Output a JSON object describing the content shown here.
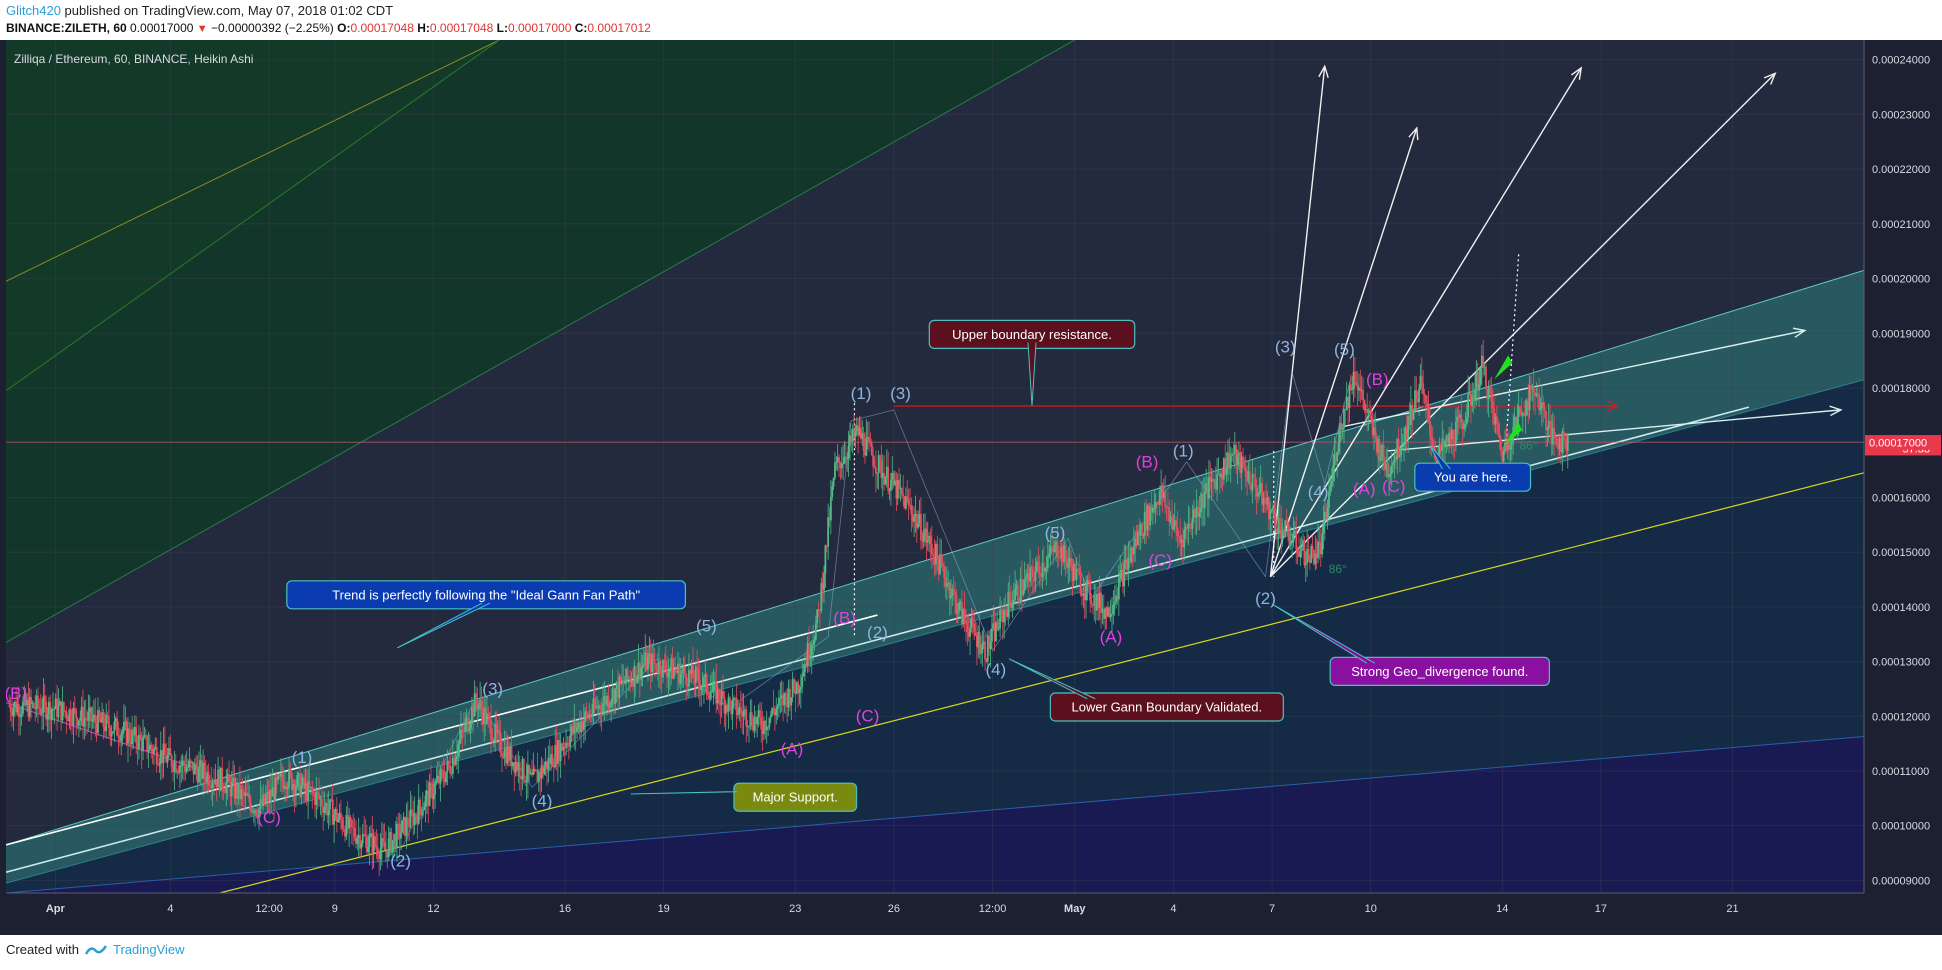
{
  "header": {
    "user": "Glitch420",
    "published": "published on TradingView.com, May 07, 2018 01:02 CDT",
    "symbol": "BINANCE:ZILETH, 60",
    "last": "0.00017000",
    "change_arrow": "▼",
    "change": "−0.00000392 (−2.25%)",
    "o_label": "O:",
    "o_value": "0.00017048",
    "h_label": "H:",
    "h_value": "0.00017048",
    "l_label": "L:",
    "l_value": "0.00017000",
    "c_label": "C:",
    "c_value": "0.00017012"
  },
  "footer": {
    "created_with": "Created with",
    "brand": "TradingView"
  },
  "chart_data": {
    "type": "candlestick",
    "title": "Zilliqa / Ethereum, 60, BINANCE, Heikin Ashi",
    "y_ticks": [
      "0.00024000",
      "0.00023000",
      "0.00022000",
      "0.00021000",
      "0.00020000",
      "0.00019000",
      "0.00018000",
      "0.00017000",
      "0.00016000",
      "0.00015000",
      "0.00014000",
      "0.00013000",
      "0.00012000",
      "0.00011000",
      "0.00010000",
      "0.00009000"
    ],
    "y_tick_values": [
      0.00024,
      0.00023,
      0.00022,
      0.00021,
      0.0002,
      0.00019,
      0.00018,
      0.00017,
      0.00016,
      0.00015,
      0.00014,
      0.00013,
      0.00012,
      0.00011,
      0.0001,
      9e-05
    ],
    "ylim": [
      8.77e-05,
      0.0002436
    ],
    "x_ticks": [
      "Apr",
      "4",
      "12:00",
      "9",
      "12",
      "16",
      "19",
      "23",
      "26",
      "12:00",
      "May",
      "4",
      "7",
      "10",
      "14",
      "17",
      "21"
    ],
    "x_tick_days": [
      0,
      3.5,
      6.5,
      8.5,
      11.5,
      15.5,
      18.5,
      22.5,
      25.5,
      28.5,
      31,
      34,
      37,
      40,
      44,
      47,
      51
    ],
    "xlim": [
      -1.5,
      55
    ],
    "price_labels": [
      {
        "text": "0.00017012",
        "value": 0.00017012
      },
      {
        "text": "57:33",
        "value": 0.00016895
      },
      {
        "text": "0.00017000",
        "value": 0.00017
      }
    ],
    "current_price": 0.00017012,
    "price_path": [
      [
        -1.4,
        0.000122
      ],
      [
        0,
        0.0001215
      ],
      [
        2,
        0.0001175
      ],
      [
        3.5,
        0.000112
      ],
      [
        5,
        0.0001085
      ],
      [
        6.2,
        0.000103
      ],
      [
        7,
        0.000109
      ],
      [
        8,
        0.000105
      ],
      [
        9,
        9.9e-05
      ],
      [
        10,
        9.55e-05
      ],
      [
        11,
        0.0001025
      ],
      [
        12,
        0.000111
      ],
      [
        12.8,
        0.000123
      ],
      [
        13.5,
        0.000115
      ],
      [
        14.5,
        0.000108
      ],
      [
        16,
        0.000119
      ],
      [
        18,
        0.00013
      ],
      [
        19.5,
        0.000127
      ],
      [
        20.5,
        0.000122
      ],
      [
        21.5,
        0.0001185
      ],
      [
        22.6,
        0.000126
      ],
      [
        23.2,
        0.000138
      ],
      [
        23.7,
        0.000165
      ],
      [
        24.4,
        0.000172
      ],
      [
        25,
        0.000166
      ],
      [
        26,
        0.000158
      ],
      [
        26.8,
        0.000149
      ],
      [
        27.6,
        0.000138
      ],
      [
        28.3,
        0.000132
      ],
      [
        29,
        0.000141
      ],
      [
        30.5,
        0.000151
      ],
      [
        31.2,
        0.000144
      ],
      [
        32,
        0.000139
      ],
      [
        33,
        0.000154
      ],
      [
        33.6,
        0.000161
      ],
      [
        34.2,
        0.000152
      ],
      [
        35,
        0.000161
      ],
      [
        35.8,
        0.000168
      ],
      [
        36.5,
        0.000162
      ],
      [
        37.2,
        0.000155
      ],
      [
        38.1,
        0.000149
      ],
      [
        38.5,
        0.000151
      ],
      [
        39,
        0.000171
      ],
      [
        39.5,
        0.000183
      ],
      [
        40,
        0.000173
      ],
      [
        40.5,
        0.000165
      ],
      [
        41,
        0.000171
      ],
      [
        41.5,
        0.000181
      ],
      [
        42,
        0.000167
      ],
      [
        42.8,
        0.000174
      ],
      [
        43.4,
        0.000184
      ],
      [
        44,
        0.000168
      ],
      [
        44.5,
        0.000175
      ],
      [
        45,
        0.00018
      ],
      [
        45.5,
        0.000171
      ],
      [
        46,
        0.00017
      ]
    ],
    "text_labels": [
      {
        "text": "(B)",
        "x": -1.2,
        "y": 0.0001232,
        "color": "#e040e0"
      },
      {
        "text": "(1)",
        "x": 7.5,
        "y": 0.0001115,
        "color": "#8fb4e0"
      },
      {
        "text": "(C)",
        "x": 6.5,
        "y": 0.0001005,
        "color": "#e040e0"
      },
      {
        "text": "(2)",
        "x": 10.5,
        "y": 9.25e-05,
        "color": "#8fb4e0"
      },
      {
        "text": "(3)",
        "x": 13.3,
        "y": 0.000124,
        "color": "#8fb4e0"
      },
      {
        "text": "(4)",
        "x": 14.8,
        "y": 0.0001035,
        "color": "#8fb4e0"
      },
      {
        "text": "(5)",
        "x": 19.8,
        "y": 0.0001355,
        "color": "#8fb4e0"
      },
      {
        "text": "(A)",
        "x": 22.4,
        "y": 0.000113,
        "color": "#e040e0"
      },
      {
        "text": "(B)",
        "x": 24.0,
        "y": 0.000137,
        "color": "#e040e0"
      },
      {
        "text": "(C)",
        "x": 24.7,
        "y": 0.000119,
        "color": "#e040e0"
      },
      {
        "text": "(2)",
        "x": 25.0,
        "y": 0.0001343,
        "color": "#8fb4e0"
      },
      {
        "text": "(1)",
        "x": 24.5,
        "y": 0.000178,
        "color": "#8fb4e0"
      },
      {
        "text": "(3)",
        "x": 25.7,
        "y": 0.000178,
        "color": "#8fb4e0"
      },
      {
        "text": "(4)",
        "x": 28.6,
        "y": 0.0001275,
        "color": "#8fb4e0"
      },
      {
        "text": "(5)",
        "x": 30.4,
        "y": 0.0001525,
        "color": "#8fb4e0"
      },
      {
        "text": "(A)",
        "x": 32.1,
        "y": 0.0001335,
        "color": "#e040e0"
      },
      {
        "text": "(C)",
        "x": 33.6,
        "y": 0.0001475,
        "color": "#e040e0"
      },
      {
        "text": "(B)",
        "x": 33.2,
        "y": 0.0001655,
        "color": "#e040e0"
      },
      {
        "text": "(1)",
        "x": 34.3,
        "y": 0.0001675,
        "color": "#8fb4e0"
      },
      {
        "text": "(3)",
        "x": 37.4,
        "y": 0.0001865,
        "color": "#8fb4e0"
      },
      {
        "text": "(2)",
        "x": 36.8,
        "y": 0.0001405,
        "color": "#8fb4e0"
      },
      {
        "text": "(4)",
        "x": 38.4,
        "y": 0.00016,
        "color": "#8fb4e0"
      },
      {
        "text": "(5)",
        "x": 39.2,
        "y": 0.000186,
        "color": "#8fb4e0"
      },
      {
        "text": "(A)",
        "x": 39.8,
        "y": 0.0001605,
        "color": "#e040e0"
      },
      {
        "text": "(C)",
        "x": 40.7,
        "y": 0.000161,
        "color": "#e040e0"
      },
      {
        "text": "(B)",
        "x": 40.2,
        "y": 0.0001805,
        "color": "#e040e0"
      },
      {
        "text": "86°",
        "x": 44.8,
        "y": 0.0001688,
        "color": "#2a8a6a"
      },
      {
        "text": "86°",
        "x": 39.0,
        "y": 0.0001462,
        "color": "#2a8a6a"
      }
    ],
    "annotations": [
      {
        "text": "Upper boundary resistance.",
        "x": 29.7,
        "y": 0.0001898,
        "bg": "#5c0f1c",
        "border": "#4bc0c0"
      },
      {
        "text": "Trend is perfectly following the \"Ideal Gann Fan Path\"",
        "x": 13.1,
        "y": 0.0001422,
        "bg": "#0a3cb0",
        "border": "#4bc0c0"
      },
      {
        "text": "Lower Gann Boundary Validated.",
        "x": 33.8,
        "y": 0.0001217,
        "bg": "#5c0f1c",
        "border": "#4bc0c0"
      },
      {
        "text": "Strong Geo_divergence found.",
        "x": 42.1,
        "y": 0.0001282,
        "bg": "#8a10a0",
        "border": "#4bc0c0"
      },
      {
        "text": "Major Support.",
        "x": 22.5,
        "y": 0.0001052,
        "bg": "#7a8a10",
        "border": "#4bc0c0"
      },
      {
        "text": "You are here.",
        "x": 43.1,
        "y": 0.0001637,
        "bg": "#0a3cb0",
        "border": "#4bc0c0"
      }
    ]
  }
}
